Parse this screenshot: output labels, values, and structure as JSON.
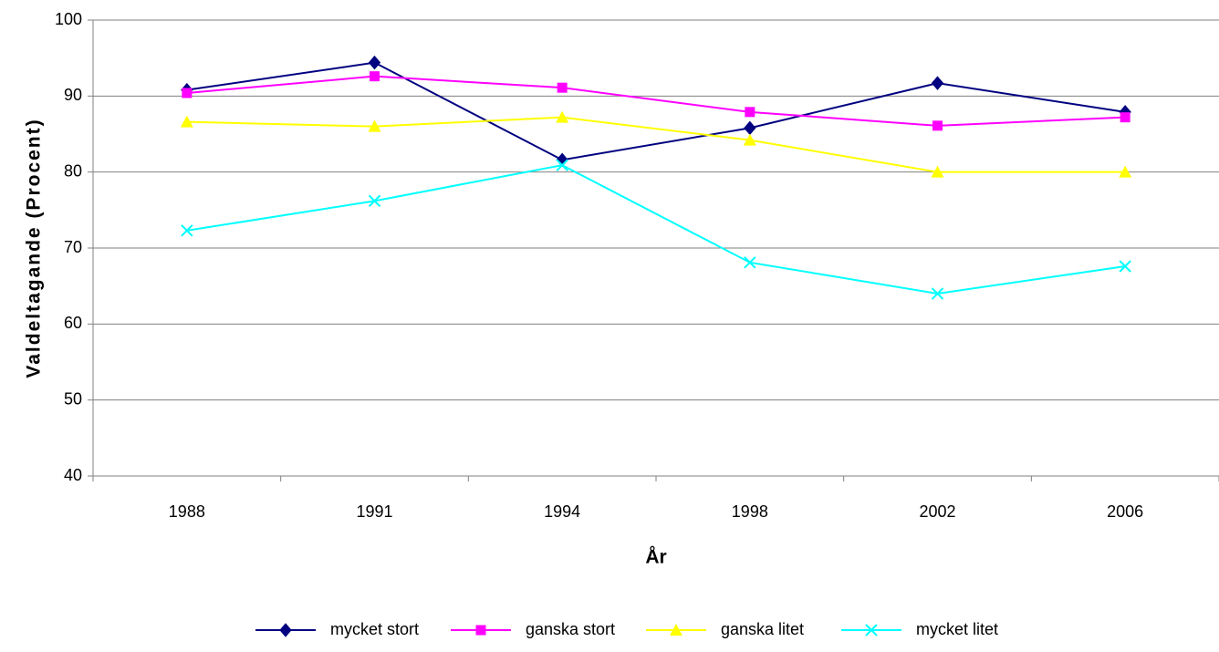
{
  "chart_data": {
    "type": "line",
    "x_label": "År",
    "y_label": "Valdeltagande (Procent)",
    "categories": [
      "1988",
      "1991",
      "1994",
      "1998",
      "2002",
      "2006"
    ],
    "series": [
      {
        "name": "mycket stort",
        "color": "#000080",
        "marker": "diamond",
        "values": [
          90.8,
          94.4,
          81.6,
          85.8,
          91.7,
          87.9
        ]
      },
      {
        "name": "ganska stort",
        "color": "#ff00ff",
        "marker": "square",
        "values": [
          90.4,
          92.6,
          91.1,
          87.9,
          86.1,
          87.2
        ]
      },
      {
        "name": "ganska litet",
        "color": "#ffff00",
        "marker": "triangle",
        "values": [
          86.6,
          86.0,
          87.2,
          84.2,
          80.0,
          80.0
        ]
      },
      {
        "name": "mycket litet",
        "color": "#00ffff",
        "marker": "x",
        "values": [
          72.3,
          76.2,
          80.9,
          68.1,
          64.0,
          67.6
        ]
      }
    ],
    "ylim": [
      40,
      100
    ],
    "yticks": [
      40,
      50,
      60,
      70,
      80,
      90,
      100
    ],
    "grid": true,
    "legend": "bottom"
  }
}
